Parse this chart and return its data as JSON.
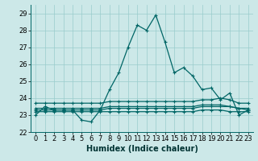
{
  "title": "",
  "xlabel": "Humidex (Indice chaleur)",
  "bg_color": "#cce8e8",
  "grid_color": "#99cccc",
  "line_color": "#006666",
  "xlim": [
    -0.5,
    23.5
  ],
  "ylim": [
    22.0,
    29.5
  ],
  "yticks": [
    22,
    23,
    24,
    25,
    26,
    27,
    28,
    29
  ],
  "xticks": [
    0,
    1,
    2,
    3,
    4,
    5,
    6,
    7,
    8,
    9,
    10,
    11,
    12,
    13,
    14,
    15,
    16,
    17,
    18,
    19,
    20,
    21,
    22,
    23
  ],
  "main_line": [
    23.0,
    23.5,
    23.3,
    23.3,
    23.3,
    22.7,
    22.6,
    23.3,
    24.5,
    25.5,
    27.0,
    28.3,
    28.0,
    28.9,
    27.3,
    25.5,
    25.8,
    25.3,
    24.5,
    24.6,
    23.9,
    24.3,
    23.0,
    23.3
  ],
  "flat_lines": [
    [
      23.3,
      23.3,
      23.3,
      23.3,
      23.3,
      23.3,
      23.3,
      23.3,
      23.4,
      23.4,
      23.4,
      23.4,
      23.4,
      23.4,
      23.4,
      23.4,
      23.4,
      23.4,
      23.5,
      23.5,
      23.5,
      23.5,
      23.4,
      23.3
    ],
    [
      23.2,
      23.2,
      23.2,
      23.2,
      23.2,
      23.2,
      23.2,
      23.2,
      23.2,
      23.2,
      23.2,
      23.2,
      23.2,
      23.2,
      23.2,
      23.2,
      23.2,
      23.2,
      23.3,
      23.3,
      23.3,
      23.2,
      23.2,
      23.2
    ],
    [
      23.4,
      23.4,
      23.4,
      23.4,
      23.4,
      23.4,
      23.4,
      23.4,
      23.5,
      23.5,
      23.5,
      23.5,
      23.5,
      23.5,
      23.5,
      23.5,
      23.5,
      23.5,
      23.6,
      23.6,
      23.6,
      23.5,
      23.4,
      23.4
    ],
    [
      23.7,
      23.7,
      23.7,
      23.7,
      23.7,
      23.7,
      23.7,
      23.7,
      23.8,
      23.8,
      23.8,
      23.8,
      23.8,
      23.8,
      23.8,
      23.8,
      23.8,
      23.8,
      23.9,
      23.9,
      24.0,
      23.9,
      23.7,
      23.7
    ]
  ],
  "xlabel_fontsize": 7,
  "xlabel_bold": true,
  "tick_fontsize": 6,
  "linewidth": 0.9,
  "markersize": 3.5
}
